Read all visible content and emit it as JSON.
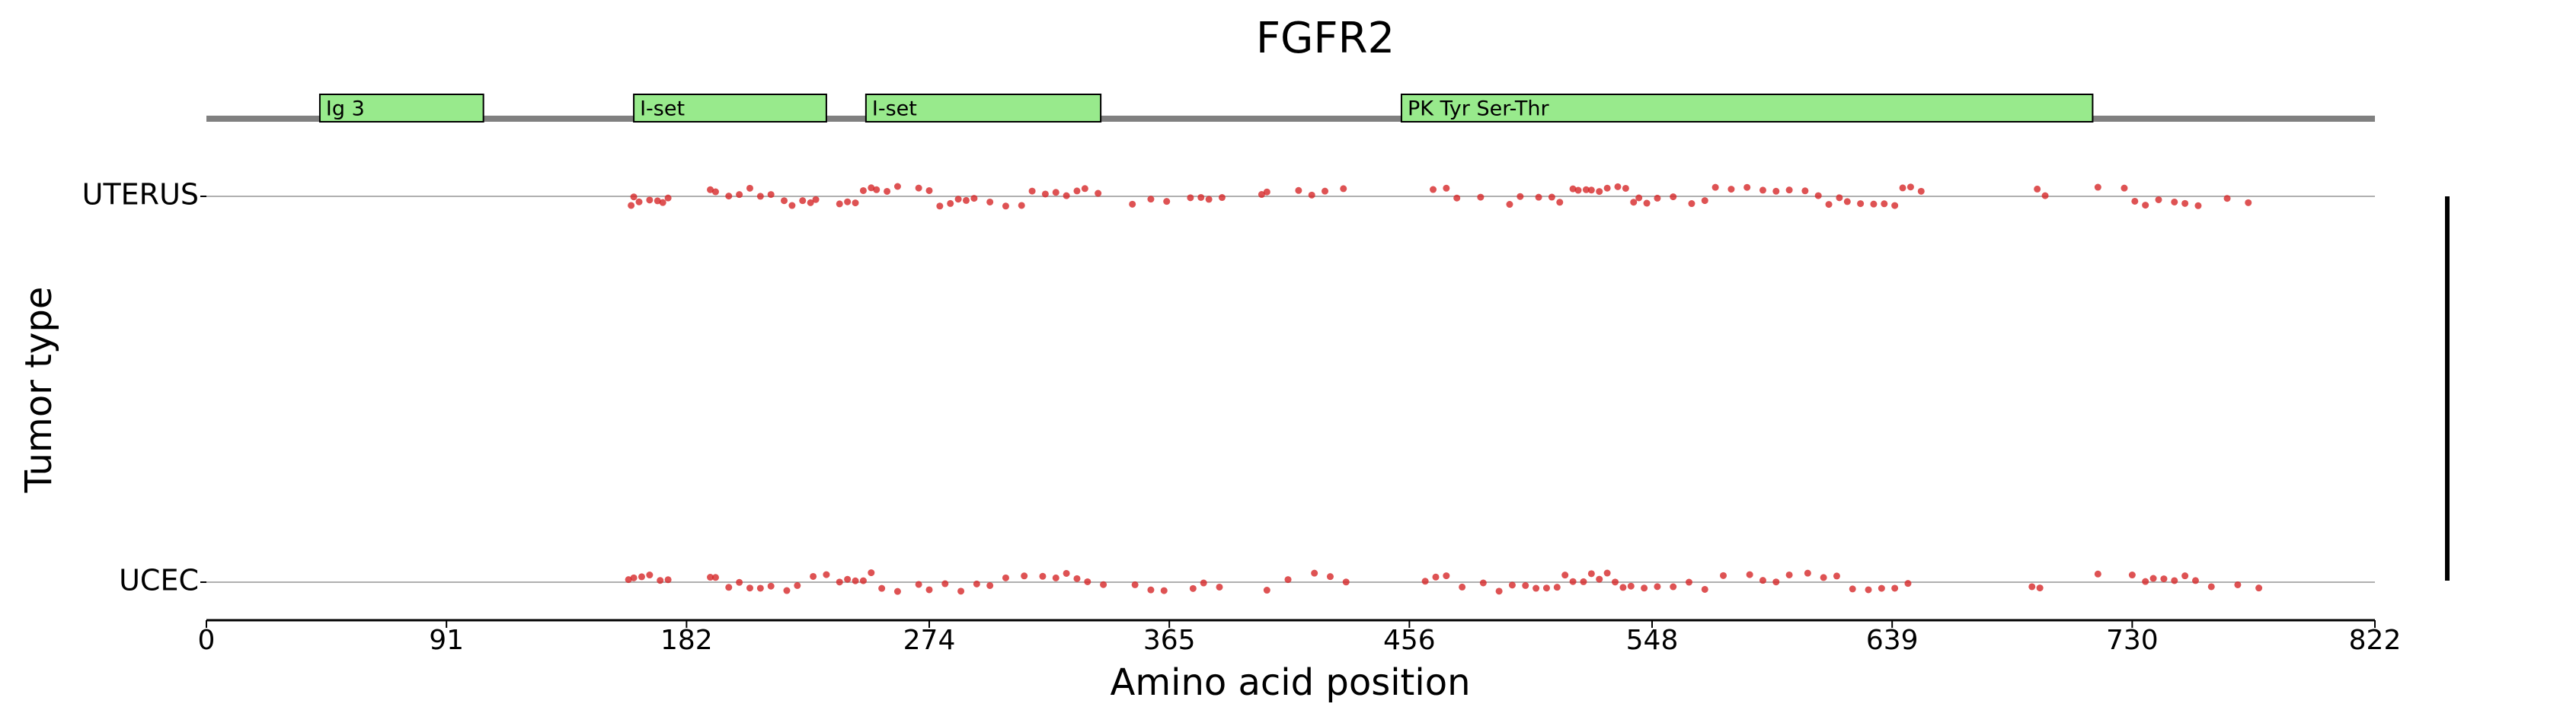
{
  "chart_data": {
    "type": "strip",
    "title": "FGFR2",
    "xlabel": "Amino acid position",
    "ylabel": "Tumor type",
    "xlim": [
      0,
      822
    ],
    "xticks": [
      0,
      91,
      182,
      274,
      365,
      456,
      548,
      639,
      730,
      822
    ],
    "categories": [
      "UTERUS",
      "UCEC"
    ],
    "color": "#d62728",
    "domains": [
      {
        "name": "Ig 3",
        "start": 43,
        "end": 105
      },
      {
        "name": "I-set",
        "start": 162,
        "end": 235
      },
      {
        "name": "I-set",
        "start": 250,
        "end": 339
      },
      {
        "name": "PK Tyr Ser-Thr",
        "start": 453,
        "end": 715
      }
    ],
    "series": [
      {
        "name": "UTERUS",
        "values": [
          161,
          162,
          164,
          168,
          171,
          173,
          175,
          191,
          193,
          198,
          202,
          206,
          210,
          214,
          219,
          222,
          226,
          229,
          231,
          240,
          243,
          246,
          249,
          252,
          254,
          258,
          262,
          270,
          274,
          278,
          282,
          285,
          288,
          291,
          297,
          303,
          309,
          313,
          318,
          322,
          326,
          330,
          333,
          338,
          351,
          358,
          364,
          373,
          377,
          380,
          385,
          400,
          402,
          414,
          419,
          424,
          431,
          465,
          470,
          474,
          483,
          494,
          498,
          505,
          510,
          513,
          518,
          520,
          523,
          525,
          528,
          531,
          535,
          538,
          541,
          543,
          546,
          550,
          556,
          563,
          568,
          572,
          578,
          584,
          590,
          595,
          600,
          606,
          611,
          615,
          619,
          622,
          627,
          632,
          636,
          640,
          643,
          646,
          650,
          694,
          697,
          717,
          727,
          731,
          735,
          740,
          746,
          750,
          755,
          766,
          774
        ]
      },
      {
        "name": "UCEC",
        "values": [
          160,
          162,
          165,
          168,
          172,
          175,
          191,
          193,
          198,
          202,
          206,
          210,
          214,
          220,
          224,
          230,
          235,
          240,
          243,
          246,
          249,
          252,
          256,
          262,
          270,
          274,
          280,
          286,
          292,
          297,
          303,
          310,
          317,
          322,
          326,
          330,
          334,
          340,
          352,
          358,
          363,
          374,
          378,
          384,
          402,
          410,
          420,
          426,
          432,
          462,
          466,
          470,
          476,
          484,
          490,
          495,
          500,
          504,
          508,
          512,
          515,
          518,
          522,
          525,
          528,
          531,
          534,
          537,
          540,
          545,
          550,
          556,
          562,
          568,
          575,
          585,
          590,
          595,
          600,
          607,
          613,
          618,
          624,
          630,
          635,
          640,
          645,
          692,
          695,
          717,
          730,
          735,
          738,
          742,
          746,
          750,
          754,
          760,
          770,
          778
        ]
      }
    ]
  }
}
